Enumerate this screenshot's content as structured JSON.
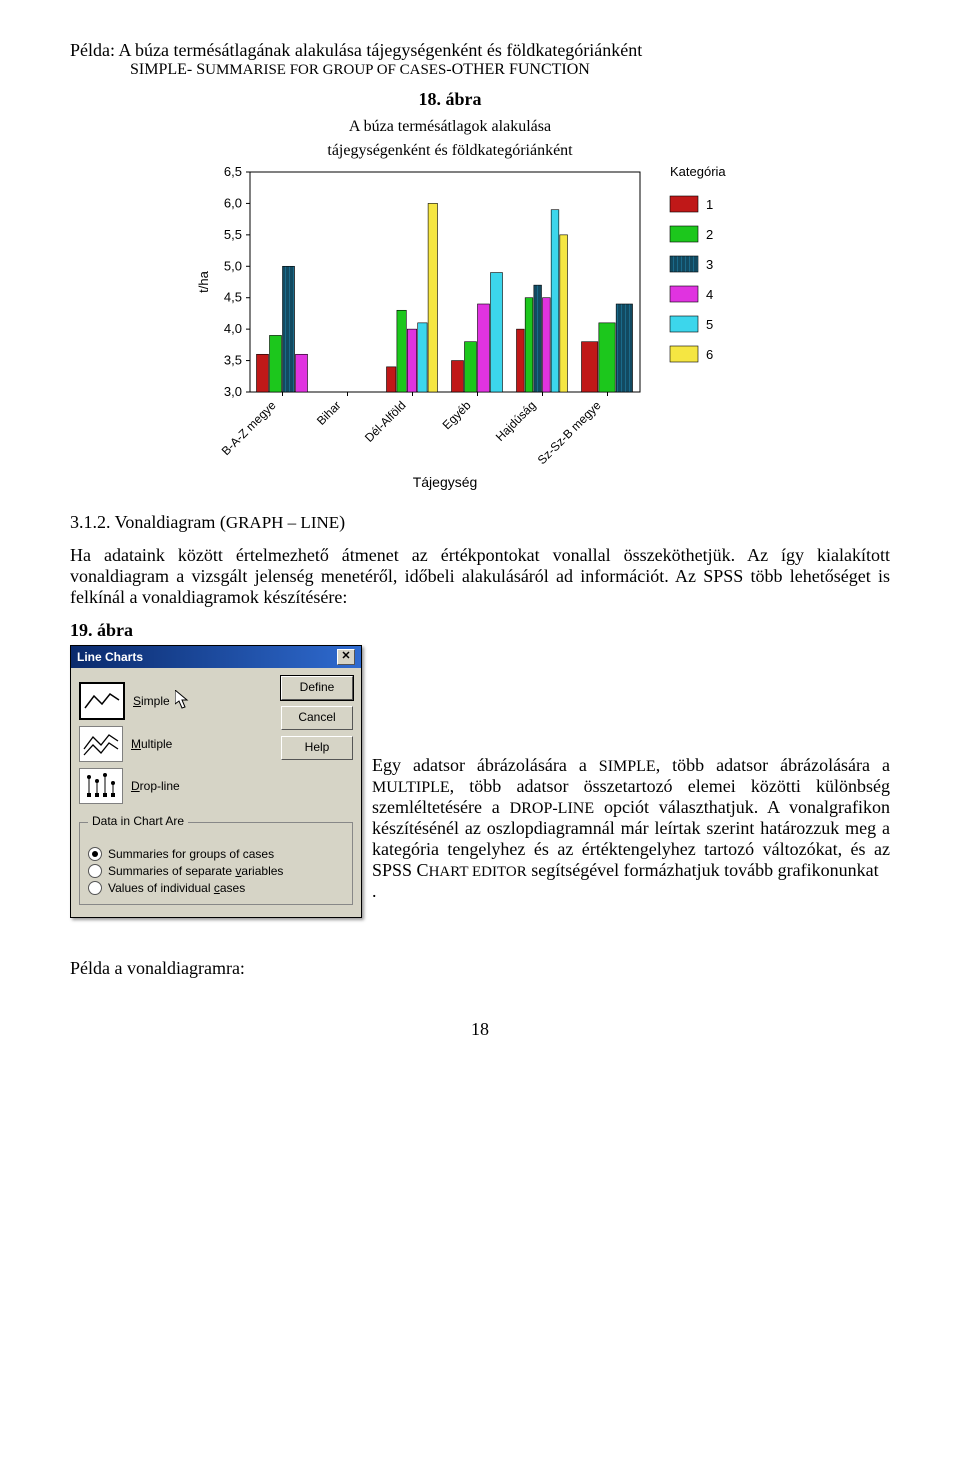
{
  "header": {
    "example_line": "Példa: A búza termésátlagának alakulása tájegységenként és földkategóriánként",
    "subline_prefix": "SIMPLE- S",
    "subline_mid": "UMMARISE FOR GROUP OF CASES",
    "subline_suffix": "-OTHER FUNCTION"
  },
  "chart": {
    "fig_label": "18. ábra",
    "title": "A búza termésátlagok alakulása",
    "subtitle": "tájegységenként és földkategóriánként",
    "type": "bar",
    "y_label": "t/ha",
    "y_ticks": [
      "3,0",
      "3,5",
      "4,0",
      "4,5",
      "5,0",
      "5,5",
      "6,0",
      "6,5"
    ],
    "ylim": [
      3.0,
      6.5
    ],
    "categories": [
      "B-A-Z megye",
      "Bihar",
      "Dél-Alföld",
      "Egyéb",
      "Hajdúság",
      "Sz-Sz-B megye"
    ],
    "x_label": "Tájegység",
    "legend_title": "Kategória",
    "legend_items": [
      "1",
      "2",
      "3",
      "4",
      "5",
      "6"
    ],
    "series_colors": [
      "#c01818",
      "#1cc71c",
      "#1a6a8a",
      "#e033e0",
      "#3cd6ec",
      "#f5e642"
    ],
    "hatched_series_index": 2,
    "grid_color": "#000000",
    "background_color": "#ffffff",
    "bar_group_width": 0.8,
    "bar_values": {
      "B-A-Z megye": [
        3.6,
        3.9,
        5.0,
        3.6,
        null,
        null
      ],
      "Bihar": [
        null,
        null,
        null,
        null,
        null,
        null
      ],
      "Dél-Alföld": [
        3.4,
        4.3,
        null,
        4.0,
        4.1,
        6.0
      ],
      "Egyéb": [
        3.5,
        3.8,
        null,
        4.4,
        4.9,
        null
      ],
      "Hajdúság": [
        4.0,
        4.5,
        4.7,
        4.5,
        5.9,
        5.5
      ],
      "Sz-Sz-B megye": [
        3.8,
        4.1,
        4.4,
        null,
        null,
        null
      ]
    }
  },
  "section": {
    "number": "3.1.2. Vonaldiagram (",
    "graph_sc": "GRAPH – LINE",
    "closing": ")"
  },
  "paragraph1": "Ha adataink között értelmezhető átmenet az értékpontokat vonallal összeköthetjük. Az így kialakított vonaldiagram a vizsgált jelenség menetéről, időbeli alakulásáról ad információt. Az SPSS több lehetőséget is felkínál a vonaldiagramok készítésére:",
  "fig19": "19. ábra",
  "dialog": {
    "title": "Line Charts",
    "buttons": {
      "define": "Define",
      "cancel": "Cancel",
      "help": "Help"
    },
    "options": [
      {
        "key": "simple",
        "label_u": "S",
        "label_rest": "imple",
        "selected": true
      },
      {
        "key": "multiple",
        "label_u": "M",
        "label_rest": "ultiple",
        "selected": false
      },
      {
        "key": "dropline",
        "label_u": "D",
        "label_rest": "rop-line",
        "selected": false
      }
    ],
    "group_label": "Data in Chart Are",
    "radios": [
      {
        "label_pre": "Summaries for ",
        "u": "g",
        "post": "roups of cases",
        "checked": true
      },
      {
        "label_pre": "Summaries of separate ",
        "u": "v",
        "post": "ariables",
        "checked": false
      },
      {
        "label_pre": "Values of individual ",
        "u": "c",
        "post": "ases",
        "checked": false
      }
    ]
  },
  "side_paragraph": {
    "p1_a": "Egy adatsor ábrázolására a ",
    "p1_sc1": "SIMPLE",
    "p1_b": ", több adatsor ábrázolására a ",
    "p1_sc2": "MULTIPLE",
    "p1_c": ", több adatsor összetartozó elemei közötti különbség szemléltetésére a ",
    "p1_sc3": "DROP-LINE",
    "p1_d": " opciót választhatjuk.",
    "p2_a": "A vonalgrafikon készítésénél az oszlopdiagramnál már leírtak szerint határozzuk meg a kategória tengelyhez és az értéktengelyhez tartozó változókat, és az SPSS C",
    "p2_sc": "HART EDITOR",
    "p2_b": " segítségével formázhatjuk tovább grafikonunkat",
    "dot": "."
  },
  "footer_line": "Példa a vonaldiagramra:",
  "page_number": "18"
}
